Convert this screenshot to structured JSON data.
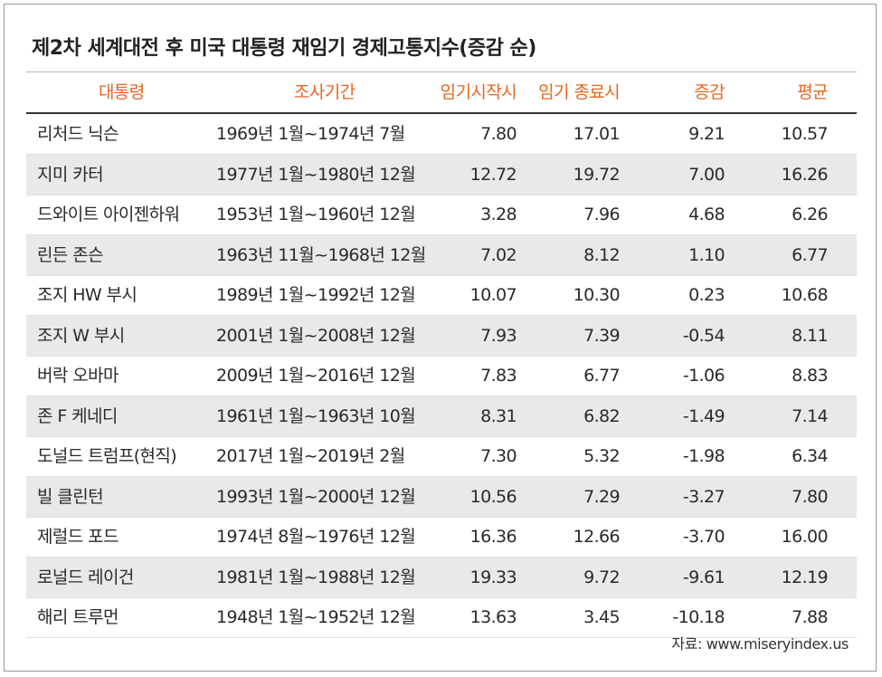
{
  "title": "제2차 세계대전 후 미국 대통령 재임기 경제고통지수(증감 순)",
  "columns": {
    "name": "대통령",
    "period": "조사기간",
    "start": "임기시작시",
    "end": "임기 종료시",
    "change": "증감",
    "average": "평균"
  },
  "rows": [
    {
      "name": "리처드 닉슨",
      "period": "1969년 1월~1974년 7월",
      "start": "7.80",
      "end": "17.01",
      "change": "9.21",
      "average": "10.57"
    },
    {
      "name": "지미 카터",
      "period": "1977년 1월~1980년 12월",
      "start": "12.72",
      "end": "19.72",
      "change": "7.00",
      "average": "16.26"
    },
    {
      "name": "드와이트 아이젠하워",
      "period": "1953년 1월~1960년 12월",
      "start": "3.28",
      "end": "7.96",
      "change": "4.68",
      "average": "6.26"
    },
    {
      "name": "린든 존슨",
      "period": "1963년 11월~1968년 12월",
      "start": "7.02",
      "end": "8.12",
      "change": "1.10",
      "average": "6.77"
    },
    {
      "name": "조지 HW 부시",
      "period": "1989년 1월~1992년 12월",
      "start": "10.07",
      "end": "10.30",
      "change": "0.23",
      "average": "10.68"
    },
    {
      "name": "조지 W 부시",
      "period": "2001년 1월~2008년 12월",
      "start": "7.93",
      "end": "7.39",
      "change": "-0.54",
      "average": "8.11"
    },
    {
      "name": "버락 오바마",
      "period": "2009년 1월~2016년 12월",
      "start": "7.83",
      "end": "6.77",
      "change": "-1.06",
      "average": "8.83"
    },
    {
      "name": "존 F 케네디",
      "period": "1961년 1월~1963년 10월",
      "start": "8.31",
      "end": "6.82",
      "change": "-1.49",
      "average": "7.14"
    },
    {
      "name": "도널드 트럼프(현직)",
      "period": "2017년 1월~2019년 2월",
      "start": "7.30",
      "end": "5.32",
      "change": "-1.98",
      "average": "6.34"
    },
    {
      "name": "빌 클린턴",
      "period": "1993년 1월~2000년 12월",
      "start": "10.56",
      "end": "7.29",
      "change": "-3.27",
      "average": "7.80"
    },
    {
      "name": "제럴드 포드",
      "period": "1974년 8월~1976년 12월",
      "start": "16.36",
      "end": "12.66",
      "change": "-3.70",
      "average": "16.00"
    },
    {
      "name": "로널드 레이건",
      "period": "1981년 1월~1988년 12월",
      "start": "19.33",
      "end": "9.72",
      "change": "-9.61",
      "average": "12.19"
    },
    {
      "name": "해리 트루먼",
      "period": "1948년 1월~1952년 12월",
      "start": "13.63",
      "end": "3.45",
      "change": "-10.18",
      "average": "7.88"
    }
  ],
  "source": "자료: www.miseryindex.us",
  "colors": {
    "header_text": "#e8661f",
    "alt_row": "#e9e9e9",
    "text": "#2a2a2a"
  }
}
